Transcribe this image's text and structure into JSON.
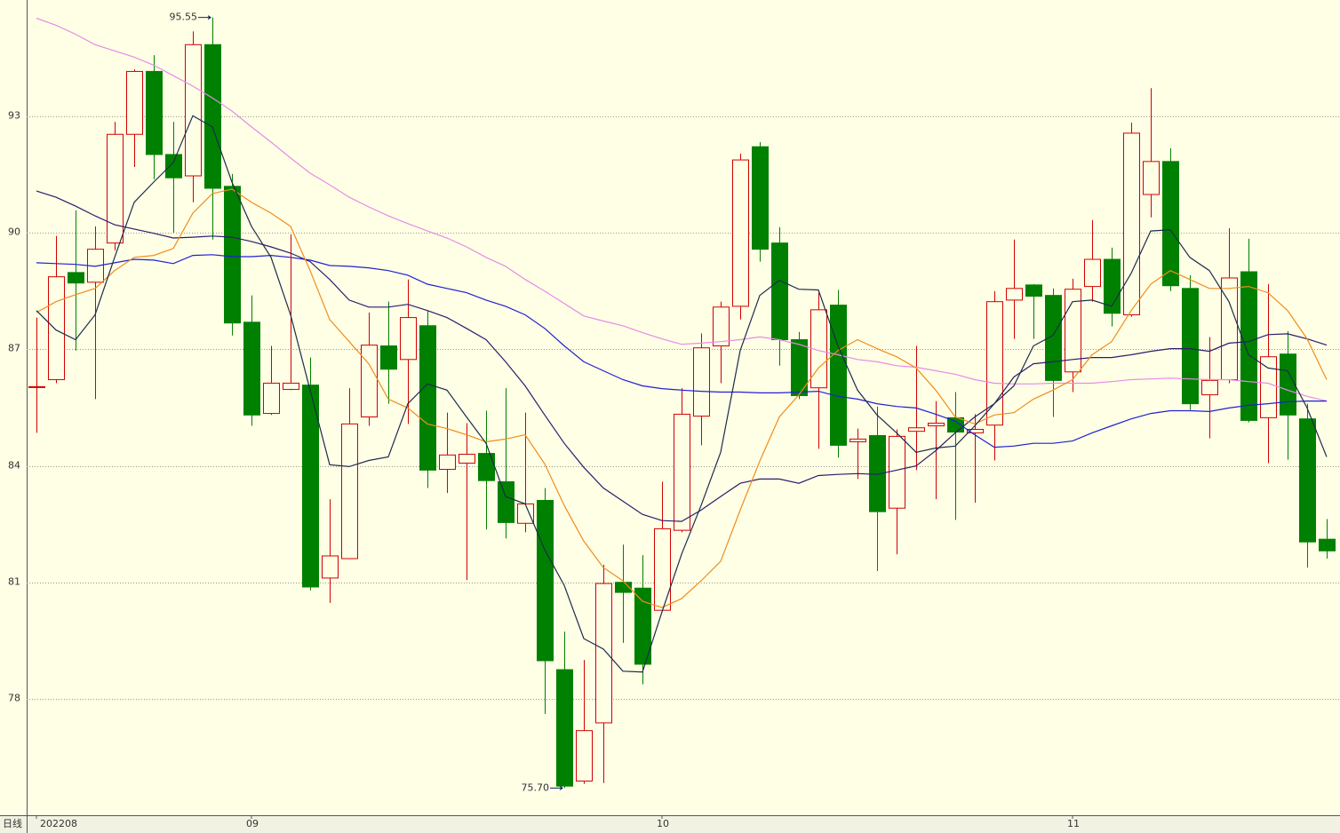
{
  "chart_data": {
    "type": "candlestick",
    "period_label": "日线",
    "categories": [
      "202208",
      null,
      null,
      null,
      null,
      null,
      null,
      null,
      null,
      null,
      null,
      "09",
      null,
      null,
      null,
      null,
      null,
      null,
      null,
      null,
      null,
      null,
      null,
      null,
      null,
      null,
      null,
      null,
      null,
      null,
      null,
      null,
      "10",
      null,
      null,
      null,
      null,
      null,
      null,
      null,
      null,
      null,
      null,
      null,
      null,
      null,
      null,
      null,
      null,
      null,
      null,
      null,
      null,
      "11",
      null,
      null,
      null,
      null,
      null,
      null,
      null,
      null,
      null,
      null,
      null,
      null,
      null
    ],
    "open": [
      86.04,
      86.22,
      88.98,
      88.73,
      89.74,
      92.54,
      94.16,
      92.02,
      91.47,
      94.85,
      91.2,
      87.7,
      85.35,
      85.97,
      86.08,
      81.11,
      81.61,
      85.26,
      87.09,
      86.74,
      87.61,
      83.91,
      84.07,
      84.32,
      83.59,
      82.52,
      83.11,
      78.75,
      75.88,
      77.38,
      81.0,
      80.85,
      80.28,
      82.34,
      85.28,
      87.09,
      88.11,
      92.22,
      89.74,
      87.25,
      86.01,
      88.14,
      84.62,
      84.78,
      82.91,
      84.89,
      85.03,
      85.24,
      84.85,
      85.05,
      88.27,
      88.66,
      88.39,
      86.42,
      88.62,
      89.32,
      87.89,
      90.99,
      91.84,
      88.57,
      85.83,
      86.22,
      89.0,
      85.24,
      86.88,
      85.21,
      82.11
    ],
    "high": [
      87.82,
      89.92,
      90.58,
      90.17,
      92.86,
      94.21,
      94.58,
      92.86,
      95.19,
      95.55,
      91.52,
      88.39,
      87.09,
      89.96,
      86.79,
      83.14,
      86.0,
      87.95,
      88.23,
      88.8,
      88.0,
      85.37,
      85.1,
      85.42,
      86.0,
      85.37,
      83.43,
      79.73,
      79.0,
      81.45,
      81.97,
      81.7,
      83.59,
      86.0,
      87.41,
      88.23,
      92.04,
      92.34,
      90.15,
      87.45,
      88.46,
      88.53,
      84.96,
      85.53,
      84.94,
      87.09,
      85.67,
      85.9,
      85.33,
      88.5,
      89.83,
      88.68,
      88.57,
      88.82,
      90.33,
      89.62,
      92.84,
      93.73,
      92.18,
      88.91,
      87.32,
      90.12,
      89.85,
      88.68,
      87.47,
      85.6,
      82.63
    ],
    "low": [
      84.85,
      86.13,
      86.97,
      85.72,
      89.55,
      91.7,
      91.38,
      90.01,
      90.79,
      89.83,
      87.36,
      85.03,
      85.31,
      85.95,
      80.79,
      80.47,
      81.61,
      85.03,
      85.6,
      85.08,
      83.43,
      83.3,
      81.06,
      82.36,
      82.13,
      82.29,
      77.61,
      75.7,
      75.81,
      75.83,
      79.44,
      78.37,
      80.24,
      82.29,
      84.53,
      86.13,
      87.77,
      89.26,
      86.58,
      85.72,
      84.44,
      84.21,
      83.66,
      81.29,
      81.72,
      83.89,
      83.14,
      82.61,
      83.05,
      84.14,
      87.27,
      87.27,
      85.26,
      85.9,
      88.23,
      87.59,
      87.84,
      90.4,
      88.5,
      85.44,
      84.71,
      86.13,
      85.12,
      84.07,
      84.16,
      81.38,
      81.61
    ],
    "close": [
      86.04,
      88.87,
      88.71,
      89.58,
      92.54,
      94.16,
      92.02,
      91.42,
      94.85,
      91.15,
      87.68,
      85.31,
      86.13,
      86.13,
      80.88,
      81.68,
      85.08,
      87.11,
      86.49,
      87.82,
      83.89,
      84.28,
      84.3,
      83.62,
      82.54,
      83.02,
      78.98,
      75.75,
      77.18,
      80.97,
      80.74,
      78.89,
      82.38,
      85.33,
      87.04,
      88.09,
      91.88,
      89.58,
      87.25,
      85.81,
      88.02,
      84.53,
      84.69,
      82.82,
      84.76,
      84.98,
      85.1,
      84.87,
      84.94,
      88.23,
      88.57,
      88.37,
      86.2,
      88.55,
      89.32,
      87.93,
      92.57,
      91.84,
      88.64,
      85.6,
      86.2,
      88.84,
      85.17,
      86.81,
      85.31,
      82.04,
      81.81
    ],
    "up_color": "#d00000",
    "down_color": "#008000",
    "ma_lines": [
      {
        "color": "#e68ce6",
        "values": [
          95.53,
          95.35,
          95.12,
          94.85,
          94.69,
          94.53,
          94.32,
          94.05,
          93.78,
          93.48,
          93.14,
          92.73,
          92.34,
          91.93,
          91.54,
          91.24,
          90.92,
          90.67,
          90.44,
          90.24,
          90.05,
          89.87,
          89.64,
          89.37,
          89.14,
          88.8,
          88.5,
          88.18,
          87.86,
          87.73,
          87.61,
          87.43,
          87.27,
          87.13,
          87.16,
          87.2,
          87.25,
          87.32,
          87.25,
          87.13,
          86.97,
          86.86,
          86.74,
          86.68,
          86.58,
          86.54,
          86.45,
          86.36,
          86.22,
          86.13,
          86.11,
          86.11,
          86.13,
          86.13,
          86.13,
          86.17,
          86.22,
          86.24,
          86.26,
          86.24,
          86.22,
          86.22,
          86.17,
          86.13,
          85.95,
          85.79,
          85.67
        ]
      },
      {
        "color": "#2020d0",
        "values": [
          89.23,
          89.21,
          89.19,
          89.14,
          89.23,
          89.32,
          89.3,
          89.21,
          89.42,
          89.44,
          89.39,
          89.39,
          89.42,
          89.37,
          89.3,
          89.16,
          89.14,
          89.1,
          89.03,
          88.91,
          88.68,
          88.57,
          88.46,
          88.27,
          88.11,
          87.89,
          87.54,
          87.09,
          86.68,
          86.45,
          86.22,
          86.06,
          85.99,
          85.95,
          85.92,
          85.9,
          85.9,
          85.88,
          85.88,
          85.9,
          85.92,
          85.79,
          85.72,
          85.6,
          85.53,
          85.49,
          85.33,
          85.15,
          84.8,
          84.48,
          84.51,
          84.58,
          84.58,
          84.64,
          84.85,
          85.03,
          85.21,
          85.35,
          85.42,
          85.42,
          85.4,
          85.49,
          85.56,
          85.6,
          85.65,
          85.67,
          85.67
        ]
      },
      {
        "color": "#2c1c6c",
        "values": [
          91.08,
          90.92,
          90.69,
          90.44,
          90.21,
          90.1,
          89.99,
          89.87,
          89.89,
          89.92,
          89.89,
          89.78,
          89.64,
          89.48,
          89.26,
          88.8,
          88.27,
          88.09,
          88.09,
          88.16,
          88.0,
          87.82,
          87.54,
          87.25,
          86.68,
          86.06,
          85.31,
          84.58,
          83.96,
          83.43,
          83.09,
          82.75,
          82.59,
          82.57,
          82.86,
          83.21,
          83.55,
          83.66,
          83.66,
          83.55,
          83.75,
          83.78,
          83.8,
          83.78,
          83.89,
          84.0,
          84.39,
          84.85,
          85.26,
          85.6,
          86.29,
          86.63,
          86.68,
          86.74,
          86.79,
          86.79,
          86.86,
          86.95,
          87.02,
          87.02,
          86.95,
          87.16,
          87.2,
          87.38,
          87.4,
          87.27,
          87.11
        ]
      },
      {
        "color": "#f08c1c",
        "values": [
          87.95,
          88.23,
          88.41,
          88.57,
          89.03,
          89.37,
          89.42,
          89.6,
          90.51,
          91.01,
          91.13,
          90.79,
          90.51,
          90.17,
          89.03,
          87.77,
          87.2,
          86.63,
          85.72,
          85.49,
          85.08,
          84.96,
          84.8,
          84.62,
          84.69,
          84.8,
          84.05,
          82.98,
          82.06,
          81.38,
          81.04,
          80.51,
          80.35,
          80.58,
          81.04,
          81.54,
          82.86,
          84.12,
          85.26,
          85.83,
          86.52,
          86.97,
          87.25,
          87.02,
          86.81,
          86.52,
          85.95,
          85.26,
          85.08,
          85.31,
          85.37,
          85.72,
          85.95,
          86.22,
          86.86,
          87.2,
          88.0,
          88.68,
          89.03,
          88.8,
          88.57,
          88.57,
          88.62,
          88.46,
          88.0,
          87.27,
          86.22
        ]
      },
      {
        "color": "#1c2c4c",
        "values": [
          88.0,
          87.5,
          87.25,
          87.89,
          89.37,
          90.79,
          91.31,
          91.81,
          93.02,
          92.73,
          91.31,
          90.17,
          89.37,
          87.89,
          85.95,
          84.03,
          83.98,
          84.14,
          84.23,
          85.6,
          86.11,
          85.95,
          85.26,
          84.58,
          83.21,
          83.02,
          81.84,
          80.92,
          79.55,
          79.28,
          78.71,
          78.69,
          80.24,
          81.72,
          82.98,
          84.35,
          86.97,
          88.39,
          88.78,
          88.55,
          88.53,
          87.09,
          85.95,
          85.31,
          84.85,
          84.35,
          84.46,
          84.51,
          85.03,
          85.6,
          86.06,
          87.09,
          87.36,
          88.23,
          88.27,
          88.11,
          88.96,
          90.05,
          90.08,
          89.37,
          89.03,
          88.23,
          86.86,
          86.52,
          86.45,
          85.49,
          84.23
        ]
      }
    ],
    "annotations": [
      {
        "text": "95.55",
        "value": 95.55
      },
      {
        "text": "75.70",
        "value": 75.7
      }
    ],
    "ylim": [
      75.0,
      96.0
    ],
    "yticks": [
      78,
      81,
      84,
      87,
      90,
      93
    ],
    "grid": true
  }
}
